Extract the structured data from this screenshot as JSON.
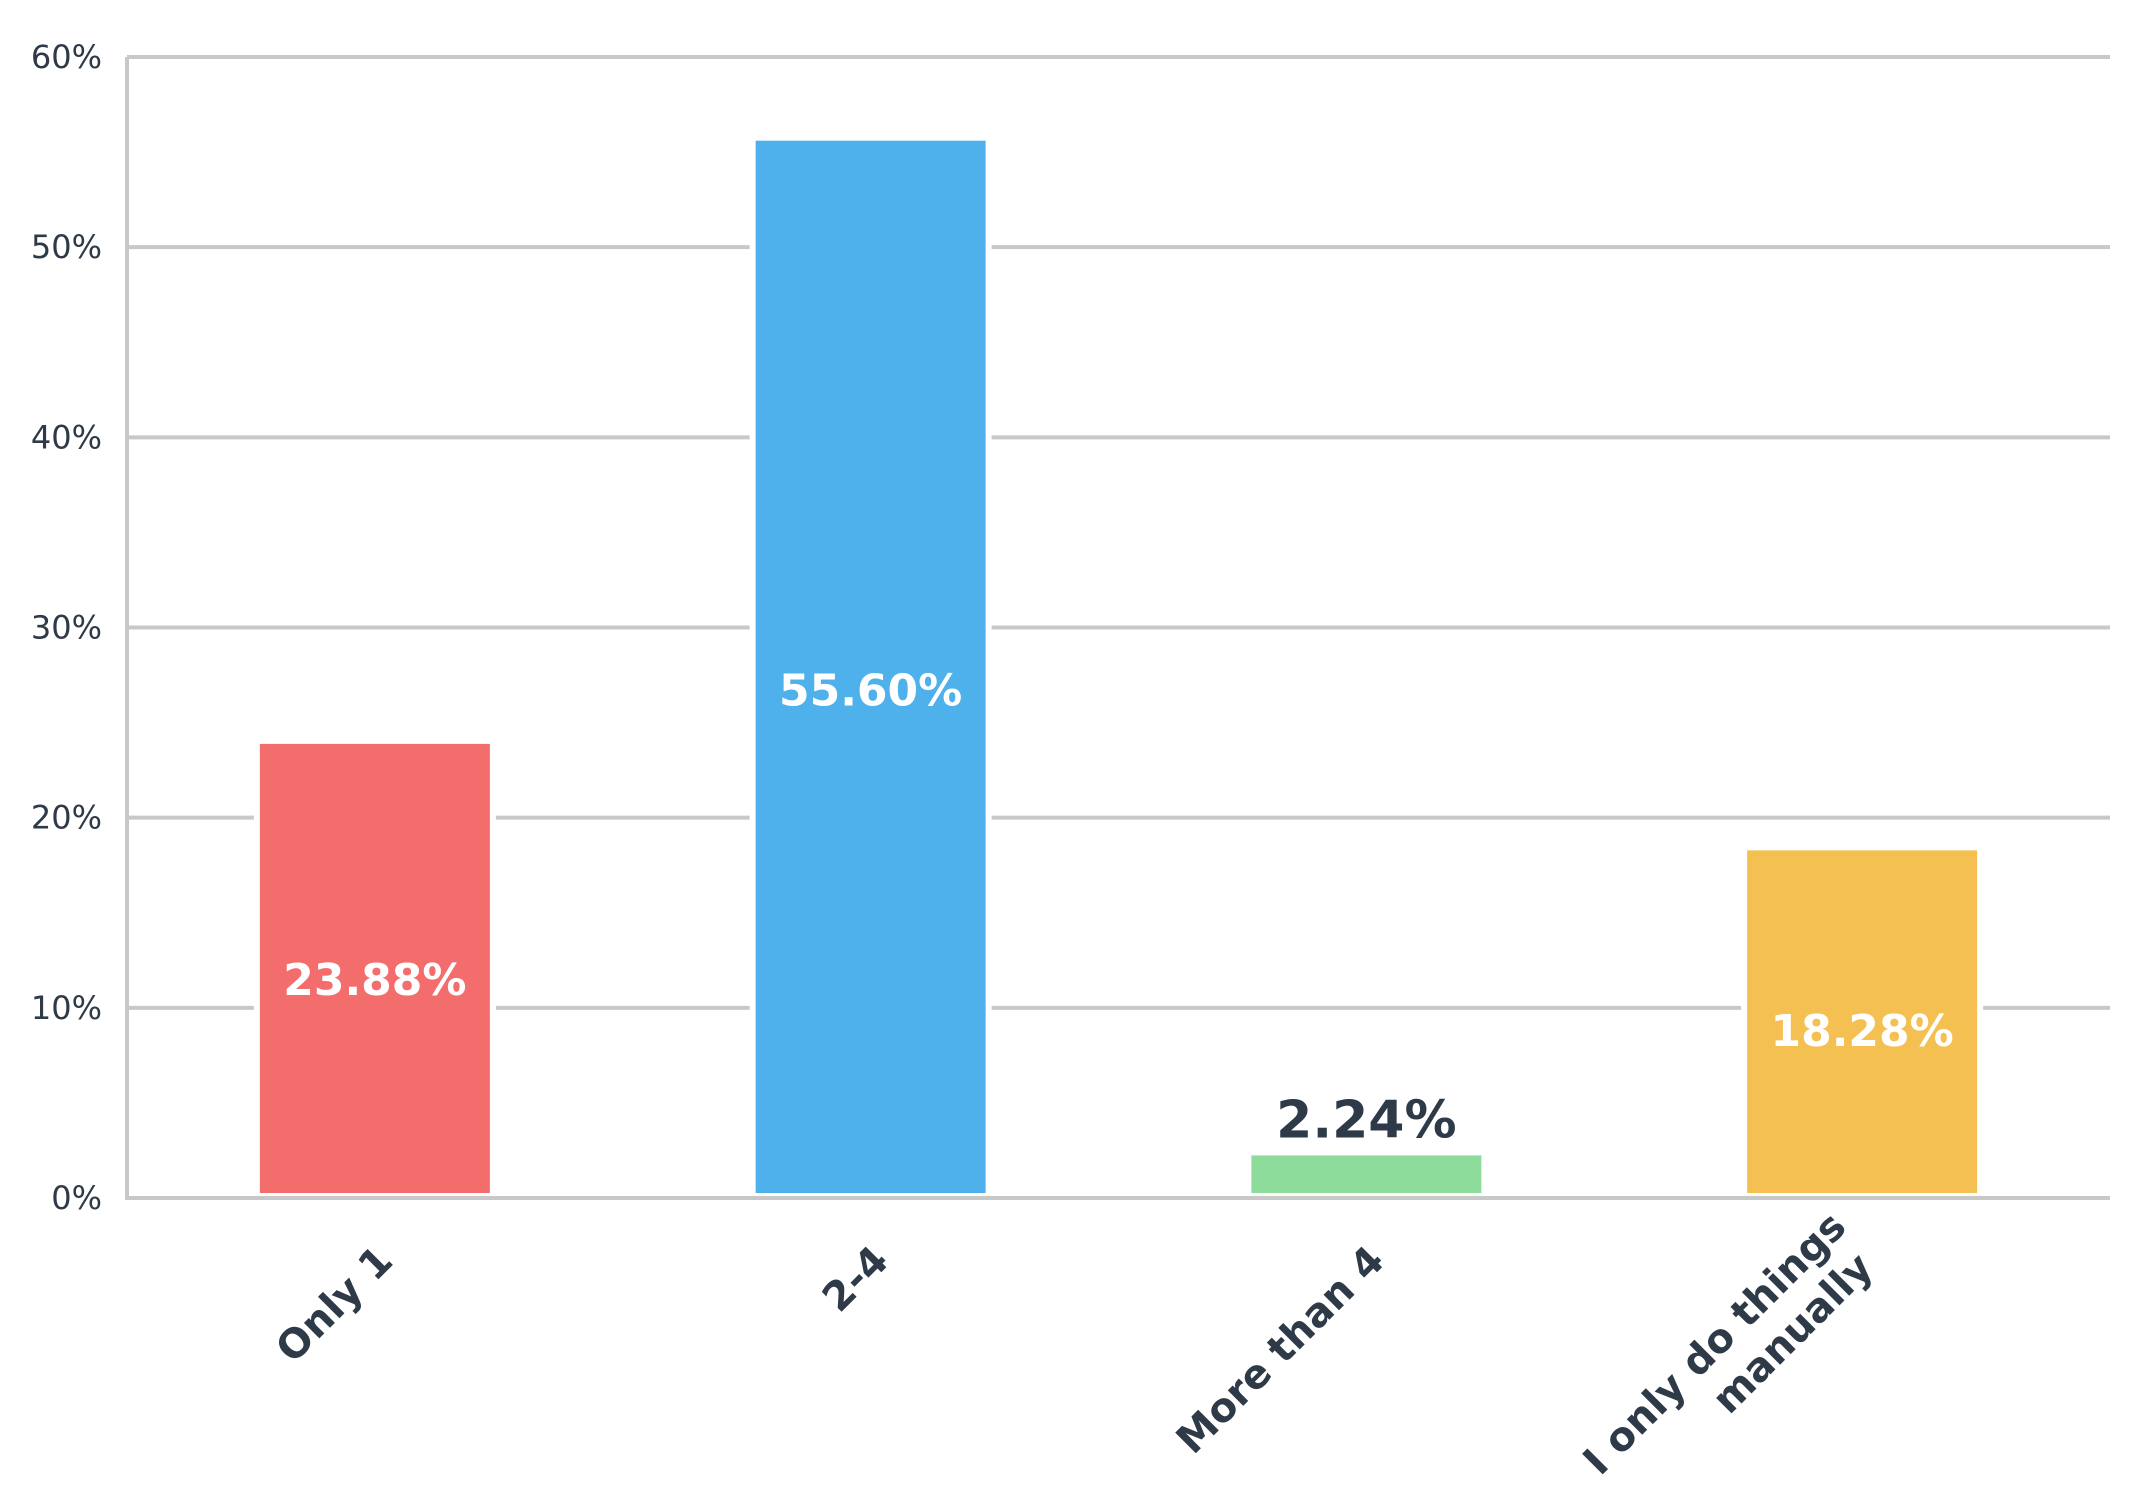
{
  "chart_data": {
    "type": "bar",
    "categories": [
      "Only 1",
      "2-4",
      "More than 4",
      "I only do things manually"
    ],
    "values": [
      23.88,
      55.6,
      2.24,
      18.28
    ],
    "value_labels": [
      "23.88%",
      "55.60%",
      "2.24%",
      "18.28%"
    ],
    "category_label_lines": [
      [
        "Only 1"
      ],
      [
        "2-4"
      ],
      [
        "More than 4"
      ],
      [
        "I only do things",
        "manually"
      ]
    ],
    "colors": [
      "#f46d6d",
      "#4fb1eb",
      "#8edc9c",
      "#f5c052"
    ],
    "ylim": [
      0,
      60
    ],
    "yticks": [
      0,
      10,
      20,
      30,
      40,
      50,
      60
    ],
    "ytick_labels": [
      "0%",
      "10%",
      "20%",
      "30%",
      "40%",
      "50%",
      "60%"
    ],
    "grid": true,
    "title": "",
    "xlabel": "",
    "ylabel": ""
  }
}
